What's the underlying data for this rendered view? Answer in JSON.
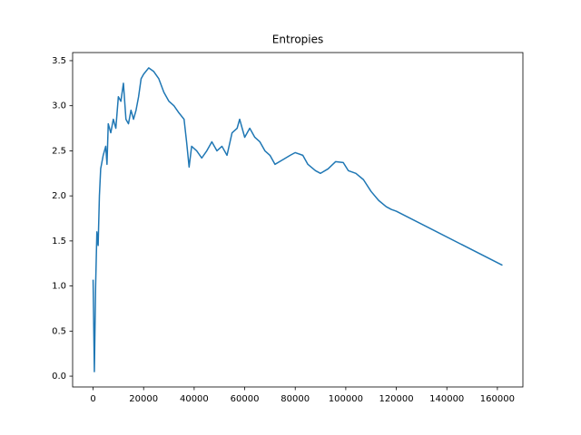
{
  "chart_data": {
    "type": "line",
    "title": "Entropies",
    "x": [
      0,
      500,
      1000,
      1500,
      2000,
      2500,
      3000,
      4000,
      5000,
      5500,
      6000,
      7000,
      8000,
      9000,
      10000,
      11000,
      12000,
      13000,
      14000,
      15000,
      16000,
      17000,
      18000,
      19000,
      20000,
      22000,
      24000,
      26000,
      28000,
      30000,
      32000,
      34000,
      36000,
      37000,
      38000,
      39000,
      41000,
      43000,
      45000,
      47000,
      49000,
      51000,
      53000,
      55000,
      57000,
      58000,
      60000,
      62000,
      64000,
      66000,
      68000,
      70000,
      72000,
      75000,
      78000,
      80000,
      83000,
      85000,
      88000,
      90000,
      93000,
      96000,
      99000,
      101000,
      104000,
      107000,
      110000,
      113000,
      116000,
      118000,
      120000,
      162000
    ],
    "values": [
      1.07,
      0.05,
      1.0,
      1.6,
      1.45,
      2.0,
      2.3,
      2.45,
      2.55,
      2.35,
      2.8,
      2.7,
      2.85,
      2.75,
      3.1,
      3.05,
      3.25,
      2.85,
      2.8,
      2.95,
      2.85,
      2.95,
      3.1,
      3.3,
      3.35,
      3.42,
      3.38,
      3.3,
      3.15,
      3.05,
      3.0,
      2.92,
      2.85,
      2.6,
      2.32,
      2.55,
      2.5,
      2.42,
      2.5,
      2.6,
      2.5,
      2.55,
      2.45,
      2.7,
      2.75,
      2.85,
      2.65,
      2.75,
      2.65,
      2.6,
      2.5,
      2.45,
      2.35,
      2.4,
      2.45,
      2.48,
      2.45,
      2.35,
      2.28,
      2.25,
      2.3,
      2.38,
      2.37,
      2.28,
      2.25,
      2.18,
      2.05,
      1.95,
      1.88,
      1.85,
      1.83,
      1.23
    ],
    "color": "#1f77b4",
    "xlim": [
      -8100,
      170100
    ],
    "xticks": [
      0,
      20000,
      40000,
      60000,
      80000,
      100000,
      120000,
      140000,
      160000
    ],
    "ylim": [
      -0.12,
      3.59
    ],
    "yticks": [
      {
        "value": 0,
        "label": "0.0"
      },
      0.5,
      {
        "value": 1,
        "label": "1.0"
      },
      1.5,
      {
        "value": 2,
        "label": "2.0"
      },
      2.5,
      {
        "value": 3,
        "label": "3.0"
      },
      3.5
    ]
  }
}
